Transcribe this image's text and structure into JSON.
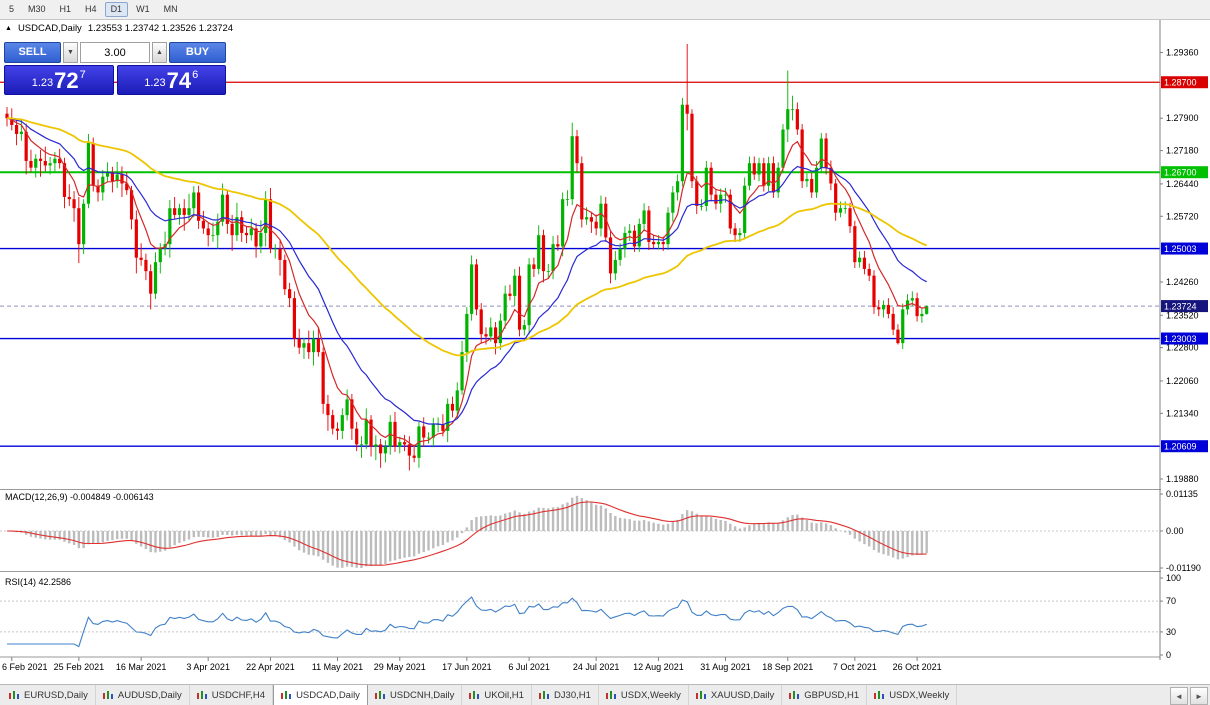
{
  "toolbar": {
    "timeframes": [
      "5",
      "M30",
      "H1",
      "H4",
      "D1",
      "W1",
      "MN"
    ],
    "active": "D1"
  },
  "chart_header": {
    "collapse_icon": "▲",
    "symbol": "USDCAD,Daily",
    "ohlc": "1.23553 1.23742 1.23526 1.23724"
  },
  "trade_panel": {
    "sell_label": "SELL",
    "buy_label": "BUY",
    "volume": "3.00",
    "volume_dropdown_icon": "▼",
    "volume_up_icon": "▲",
    "bid_big": "1.23",
    "bid_pips": "72",
    "bid_sup": "7",
    "ask_big": "1.23",
    "ask_pips": "74",
    "ask_sup": "6"
  },
  "chart_data": {
    "type": "candlestick",
    "title": "USDCAD,Daily",
    "ohlc_display": {
      "open": "1.23553",
      "high": "1.23742",
      "low": "1.23526",
      "close": "1.23724"
    },
    "ylim": [
      1.1968,
      1.2995
    ],
    "price_ticks": [
      1.2936,
      1.279,
      1.2718,
      1.2644,
      1.2572,
      1.2426,
      1.2352,
      1.228,
      1.2206,
      1.2134,
      1.1988
    ],
    "x_labels": [
      "6 Feb 2021",
      "25 Feb 2021",
      "16 Mar 2021",
      "3 Apr 2021",
      "22 Apr 2021",
      "11 May 2021",
      "29 May 2021",
      "17 Jun 2021",
      "6 Jul 2021",
      "24 Jul 2021",
      "12 Aug 2021",
      "31 Aug 2021",
      "18 Sep 2021",
      "7 Oct 2021",
      "26 Oct 2021"
    ],
    "levels": [
      {
        "value": 1.287,
        "label": "1.28700",
        "color": "#d80000",
        "width": 1.2
      },
      {
        "value": 1.267,
        "label": "1.26700",
        "color": "#00c000",
        "width": 2
      },
      {
        "value": 1.25003,
        "label": "1.25003",
        "color": "#0000d8",
        "width": 1.4
      },
      {
        "value": 1.23003,
        "label": "1.23003",
        "color": "#0000d8",
        "width": 1.4
      },
      {
        "value": 1.20609,
        "label": "1.20609",
        "color": "#0000d8",
        "width": 1.4
      }
    ],
    "current_price": {
      "value": 1.23724,
      "label": "1.23724",
      "color": "#15157d"
    },
    "up_color": "#00b300",
    "down_color": "#e60000",
    "moving_averages": [
      {
        "period": 8,
        "color": "#d42828",
        "width": 1.2
      },
      {
        "period": 20,
        "color": "#2828d4",
        "width": 1.2
      },
      {
        "period": 60,
        "color": "#edc500",
        "width": 1.8
      }
    ],
    "indicators": {
      "macd": {
        "label": "MACD(12,26,9) -0.004849 -0.006143",
        "params": [
          12,
          26,
          9
        ],
        "values_text": [
          "-0.004849",
          "-0.006143"
        ],
        "scale_labels": [
          "0.01135",
          "0.00",
          "-0.01190"
        ],
        "histogram_color": "#bcbcbc",
        "signal_color": "#e03030"
      },
      "rsi": {
        "label": "RSI(14) 42.2586",
        "period": 14,
        "value_text": "42.2586",
        "scale_lab": "",
        "scale_labels": [
          "100",
          "70",
          "30",
          "0"
        ],
        "levels": [
          70,
          30
        ],
        "color": "#4080c8"
      }
    },
    "candles": [
      [
        1.28,
        1.2815,
        1.2772,
        1.279
      ],
      [
        1.279,
        1.2812,
        1.2763,
        1.2775
      ],
      [
        1.2775,
        1.2787,
        1.273,
        1.2755
      ],
      [
        1.2755,
        1.2788,
        1.274,
        1.276
      ],
      [
        1.276,
        1.2778,
        1.2665,
        1.2695
      ],
      [
        1.2695,
        1.272,
        1.267,
        1.268
      ],
      [
        1.268,
        1.271,
        1.2658,
        1.27
      ],
      [
        1.27,
        1.272,
        1.266,
        1.2695
      ],
      [
        1.2695,
        1.2727,
        1.2672,
        1.2685
      ],
      [
        1.2685,
        1.2704,
        1.2665,
        1.269
      ],
      [
        1.269,
        1.2715,
        1.2672,
        1.27
      ],
      [
        1.27,
        1.2722,
        1.2678,
        1.269
      ],
      [
        1.269,
        1.2702,
        1.259,
        1.2615
      ],
      [
        1.2615,
        1.2643,
        1.2595,
        1.261
      ],
      [
        1.261,
        1.2628,
        1.256,
        1.259
      ],
      [
        1.259,
        1.2615,
        1.2468,
        1.251
      ],
      [
        1.251,
        1.261,
        1.2488,
        1.26
      ],
      [
        1.26,
        1.2755,
        1.259,
        1.2735
      ],
      [
        1.2735,
        1.2747,
        1.2627,
        1.264
      ],
      [
        1.264,
        1.2654,
        1.2605,
        1.2625
      ],
      [
        1.2625,
        1.2675,
        1.2607,
        1.266
      ],
      [
        1.266,
        1.2692,
        1.2648,
        1.267
      ],
      [
        1.267,
        1.2682,
        1.2625,
        1.265
      ],
      [
        1.265,
        1.2693,
        1.2635,
        1.2665
      ],
      [
        1.2665,
        1.2683,
        1.2615,
        1.2645
      ],
      [
        1.2645,
        1.267,
        1.262,
        1.263
      ],
      [
        1.263,
        1.264,
        1.2543,
        1.2565
      ],
      [
        1.2565,
        1.2585,
        1.2445,
        1.248
      ],
      [
        1.248,
        1.2512,
        1.2462,
        1.2475
      ],
      [
        1.2475,
        1.2489,
        1.243,
        1.245
      ],
      [
        1.245,
        1.2465,
        1.2365,
        1.24
      ],
      [
        1.24,
        1.2492,
        1.2388,
        1.247
      ],
      [
        1.247,
        1.2512,
        1.2445,
        1.25
      ],
      [
        1.25,
        1.2538,
        1.2485,
        1.251
      ],
      [
        1.251,
        1.2608,
        1.248,
        1.259
      ],
      [
        1.259,
        1.2615,
        1.2565,
        1.2575
      ],
      [
        1.2575,
        1.26,
        1.2553,
        1.259
      ],
      [
        1.259,
        1.261,
        1.254,
        1.2575
      ],
      [
        1.2575,
        1.2622,
        1.2562,
        1.259
      ],
      [
        1.259,
        1.2639,
        1.257,
        1.2625
      ],
      [
        1.2625,
        1.264,
        1.2544,
        1.2562
      ],
      [
        1.2562,
        1.2584,
        1.2533,
        1.2545
      ],
      [
        1.2545,
        1.2557,
        1.2505,
        1.253
      ],
      [
        1.253,
        1.2558,
        1.2515,
        1.253
      ],
      [
        1.253,
        1.2578,
        1.25,
        1.256
      ],
      [
        1.256,
        1.2645,
        1.255,
        1.262
      ],
      [
        1.262,
        1.263,
        1.2533,
        1.2555
      ],
      [
        1.2555,
        1.2575,
        1.2495,
        1.253
      ],
      [
        1.253,
        1.2602,
        1.2517,
        1.257
      ],
      [
        1.257,
        1.2584,
        1.2515,
        1.2535
      ],
      [
        1.2535,
        1.255,
        1.2512,
        1.253
      ],
      [
        1.253,
        1.2567,
        1.2518,
        1.2545
      ],
      [
        1.2545,
        1.2557,
        1.248,
        1.2505
      ],
      [
        1.2505,
        1.2563,
        1.249,
        1.2535
      ],
      [
        1.2535,
        1.2628,
        1.2505,
        1.261
      ],
      [
        1.261,
        1.2635,
        1.249,
        1.25
      ],
      [
        1.25,
        1.251,
        1.2478,
        1.25
      ],
      [
        1.25,
        1.252,
        1.244,
        1.2475
      ],
      [
        1.2475,
        1.2487,
        1.2397,
        1.241
      ],
      [
        1.241,
        1.2424,
        1.237,
        1.239
      ],
      [
        1.239,
        1.2405,
        1.2282,
        1.23
      ],
      [
        1.23,
        1.2322,
        1.2266,
        1.228
      ],
      [
        1.228,
        1.2302,
        1.2255,
        1.229
      ],
      [
        1.229,
        1.2318,
        1.2255,
        1.227
      ],
      [
        1.227,
        1.2318,
        1.224,
        1.23
      ],
      [
        1.23,
        1.2325,
        1.226,
        1.227
      ],
      [
        1.227,
        1.228,
        1.2133,
        1.2155
      ],
      [
        1.2155,
        1.2175,
        1.2095,
        1.213
      ],
      [
        1.213,
        1.2142,
        1.2087,
        1.21
      ],
      [
        1.21,
        1.2114,
        1.2075,
        1.2095
      ],
      [
        1.2095,
        1.2145,
        1.2077,
        1.213
      ],
      [
        1.213,
        1.2187,
        1.2118,
        1.2165
      ],
      [
        1.2165,
        1.2177,
        1.2075,
        1.21
      ],
      [
        1.21,
        1.2115,
        1.205,
        1.2065
      ],
      [
        1.2065,
        1.2083,
        1.2035,
        1.2065
      ],
      [
        1.2065,
        1.2145,
        1.2055,
        1.212
      ],
      [
        1.212,
        1.213,
        1.2038,
        1.206
      ],
      [
        1.206,
        1.2085,
        1.203,
        1.2065
      ],
      [
        1.2065,
        1.2077,
        1.2013,
        1.2045
      ],
      [
        1.2045,
        1.2074,
        1.2025,
        1.206
      ],
      [
        1.206,
        1.213,
        1.2042,
        1.2115
      ],
      [
        1.2115,
        1.2137,
        1.2048,
        1.206
      ],
      [
        1.206,
        1.2082,
        1.2045,
        1.207
      ],
      [
        1.207,
        1.2086,
        1.205,
        1.2065
      ],
      [
        1.2065,
        1.2083,
        1.2007,
        1.204
      ],
      [
        1.204,
        1.2065,
        1.2025,
        1.2035
      ],
      [
        1.2035,
        1.2115,
        1.2013,
        1.2105
      ],
      [
        1.2105,
        1.2125,
        1.206,
        1.208
      ],
      [
        1.208,
        1.2092,
        1.2067,
        1.208
      ],
      [
        1.208,
        1.2124,
        1.206,
        1.211
      ],
      [
        1.211,
        1.2125,
        1.2092,
        1.211
      ],
      [
        1.211,
        1.2132,
        1.2083,
        1.2095
      ],
      [
        1.2095,
        1.2167,
        1.207,
        1.2155
      ],
      [
        1.2155,
        1.2171,
        1.2125,
        1.214
      ],
      [
        1.214,
        1.2203,
        1.2122,
        1.2185
      ],
      [
        1.2185,
        1.2295,
        1.2175,
        1.227
      ],
      [
        1.227,
        1.237,
        1.2248,
        1.2355
      ],
      [
        1.2355,
        1.2485,
        1.234,
        1.2465
      ],
      [
        1.2465,
        1.2477,
        1.2352,
        1.2365
      ],
      [
        1.2365,
        1.2379,
        1.229,
        1.231
      ],
      [
        1.231,
        1.2325,
        1.2287,
        1.2305
      ],
      [
        1.2305,
        1.2347,
        1.2293,
        1.2325
      ],
      [
        1.2325,
        1.2337,
        1.2265,
        1.229
      ],
      [
        1.229,
        1.2356,
        1.2275,
        1.234
      ],
      [
        1.234,
        1.2418,
        1.2322,
        1.24
      ],
      [
        1.24,
        1.242,
        1.2385,
        1.2395
      ],
      [
        1.2395,
        1.2455,
        1.2373,
        1.244
      ],
      [
        1.244,
        1.246,
        1.2305,
        1.232
      ],
      [
        1.232,
        1.2342,
        1.2307,
        1.233
      ],
      [
        1.233,
        1.2479,
        1.231,
        1.2465
      ],
      [
        1.2465,
        1.248,
        1.2437,
        1.2455
      ],
      [
        1.2455,
        1.2552,
        1.2443,
        1.253
      ],
      [
        1.253,
        1.2542,
        1.2425,
        1.245
      ],
      [
        1.245,
        1.2466,
        1.2435,
        1.245
      ],
      [
        1.245,
        1.2528,
        1.2432,
        1.251
      ],
      [
        1.251,
        1.253,
        1.2495,
        1.2505
      ],
      [
        1.2505,
        1.2625,
        1.2483,
        1.261
      ],
      [
        1.261,
        1.263,
        1.2595,
        1.261
      ],
      [
        1.261,
        1.278,
        1.2597,
        1.275
      ],
      [
        1.275,
        1.2764,
        1.267,
        1.269
      ],
      [
        1.269,
        1.2705,
        1.2547,
        1.2565
      ],
      [
        1.2565,
        1.2592,
        1.2553,
        1.257
      ],
      [
        1.257,
        1.2582,
        1.2535,
        1.256
      ],
      [
        1.256,
        1.2576,
        1.253,
        1.2545
      ],
      [
        1.2545,
        1.2618,
        1.2527,
        1.26
      ],
      [
        1.26,
        1.2615,
        1.2515,
        1.2525
      ],
      [
        1.2525,
        1.254,
        1.2423,
        1.2445
      ],
      [
        1.2445,
        1.2495,
        1.243,
        1.2475
      ],
      [
        1.2475,
        1.2512,
        1.2462,
        1.25
      ],
      [
        1.25,
        1.2549,
        1.248,
        1.2535
      ],
      [
        1.2535,
        1.2555,
        1.2517,
        1.254
      ],
      [
        1.254,
        1.2552,
        1.2493,
        1.2505
      ],
      [
        1.2505,
        1.2567,
        1.2493,
        1.2555
      ],
      [
        1.2555,
        1.2601,
        1.254,
        1.2585
      ],
      [
        1.2585,
        1.2595,
        1.2497,
        1.2515
      ],
      [
        1.2515,
        1.253,
        1.25,
        1.251
      ],
      [
        1.251,
        1.253,
        1.2498,
        1.2515
      ],
      [
        1.2515,
        1.2527,
        1.2495,
        1.251
      ],
      [
        1.251,
        1.2592,
        1.2497,
        1.258
      ],
      [
        1.258,
        1.2639,
        1.256,
        1.2625
      ],
      [
        1.2625,
        1.2665,
        1.2607,
        1.265
      ],
      [
        1.265,
        1.2835,
        1.2638,
        1.282
      ],
      [
        1.282,
        1.2955,
        1.2763,
        1.28
      ],
      [
        1.28,
        1.281,
        1.2635,
        1.265
      ],
      [
        1.265,
        1.2662,
        1.2577,
        1.2595
      ],
      [
        1.2595,
        1.261,
        1.2585,
        1.2595
      ],
      [
        1.2595,
        1.2695,
        1.2583,
        1.268
      ],
      [
        1.268,
        1.2692,
        1.2605,
        1.262
      ],
      [
        1.262,
        1.2632,
        1.2587,
        1.26
      ],
      [
        1.26,
        1.2634,
        1.258,
        1.262
      ],
      [
        1.262,
        1.2635,
        1.2602,
        1.262
      ],
      [
        1.262,
        1.2632,
        1.2533,
        1.2545
      ],
      [
        1.2545,
        1.2557,
        1.2515,
        1.253
      ],
      [
        1.253,
        1.2546,
        1.2515,
        1.2535
      ],
      [
        1.2535,
        1.2658,
        1.2523,
        1.264
      ],
      [
        1.264,
        1.2705,
        1.263,
        1.269
      ],
      [
        1.269,
        1.2705,
        1.2653,
        1.2665
      ],
      [
        1.2665,
        1.2702,
        1.265,
        1.269
      ],
      [
        1.269,
        1.2702,
        1.2627,
        1.264
      ],
      [
        1.264,
        1.2704,
        1.2628,
        1.269
      ],
      [
        1.269,
        1.2705,
        1.2613,
        1.2625
      ],
      [
        1.2625,
        1.2692,
        1.2613,
        1.268
      ],
      [
        1.268,
        1.2777,
        1.2668,
        1.2765
      ],
      [
        1.2765,
        1.2896,
        1.2737,
        1.281
      ],
      [
        1.281,
        1.284,
        1.2785,
        1.281
      ],
      [
        1.281,
        1.2825,
        1.2753,
        1.2765
      ],
      [
        1.2765,
        1.2777,
        1.2635,
        1.265
      ],
      [
        1.265,
        1.2667,
        1.2637,
        1.2655
      ],
      [
        1.2655,
        1.2669,
        1.2613,
        1.2625
      ],
      [
        1.2625,
        1.2695,
        1.2613,
        1.268
      ],
      [
        1.268,
        1.2757,
        1.2668,
        1.2745
      ],
      [
        1.2745,
        1.2757,
        1.2665,
        1.268
      ],
      [
        1.268,
        1.2696,
        1.263,
        1.2645
      ],
      [
        1.2645,
        1.2655,
        1.2562,
        1.258
      ],
      [
        1.258,
        1.2605,
        1.257,
        1.259
      ],
      [
        1.259,
        1.2605,
        1.2578,
        1.259
      ],
      [
        1.259,
        1.2602,
        1.2535,
        1.255
      ],
      [
        1.255,
        1.2562,
        1.2457,
        1.247
      ],
      [
        1.247,
        1.2494,
        1.2458,
        1.248
      ],
      [
        1.248,
        1.2495,
        1.2443,
        1.2455
      ],
      [
        1.2455,
        1.2467,
        1.2428,
        1.244
      ],
      [
        1.244,
        1.2452,
        1.2355,
        1.237
      ],
      [
        1.237,
        1.2386,
        1.235,
        1.2365
      ],
      [
        1.2365,
        1.2385,
        1.2347,
        1.2375
      ],
      [
        1.2375,
        1.239,
        1.2345,
        1.2355
      ],
      [
        1.2355,
        1.237,
        1.2308,
        1.232
      ],
      [
        1.232,
        1.2332,
        1.2287,
        1.229
      ],
      [
        1.229,
        1.2378,
        1.2277,
        1.2365
      ],
      [
        1.2365,
        1.2399,
        1.2353,
        1.2385
      ],
      [
        1.2385,
        1.2405,
        1.2373,
        1.239
      ],
      [
        1.239,
        1.2402,
        1.2338,
        1.235
      ],
      [
        1.235,
        1.2367,
        1.2335,
        1.2355
      ],
      [
        1.2355,
        1.2374,
        1.2353,
        1.2372
      ]
    ]
  },
  "tabs": {
    "items": [
      "EURUSD,Daily",
      "AUDUSD,Daily",
      "USDCHF,H4",
      "USDCAD,Daily",
      "USDCNH,Daily",
      "UKOil,H1",
      "DJ30,H1",
      "USDX,Weekly",
      "XAUUSD,Daily",
      "GBPUSD,H1",
      "USDX,Weekly"
    ],
    "active_index": 3,
    "nav": {
      "left": "◄",
      "right": "►"
    }
  }
}
